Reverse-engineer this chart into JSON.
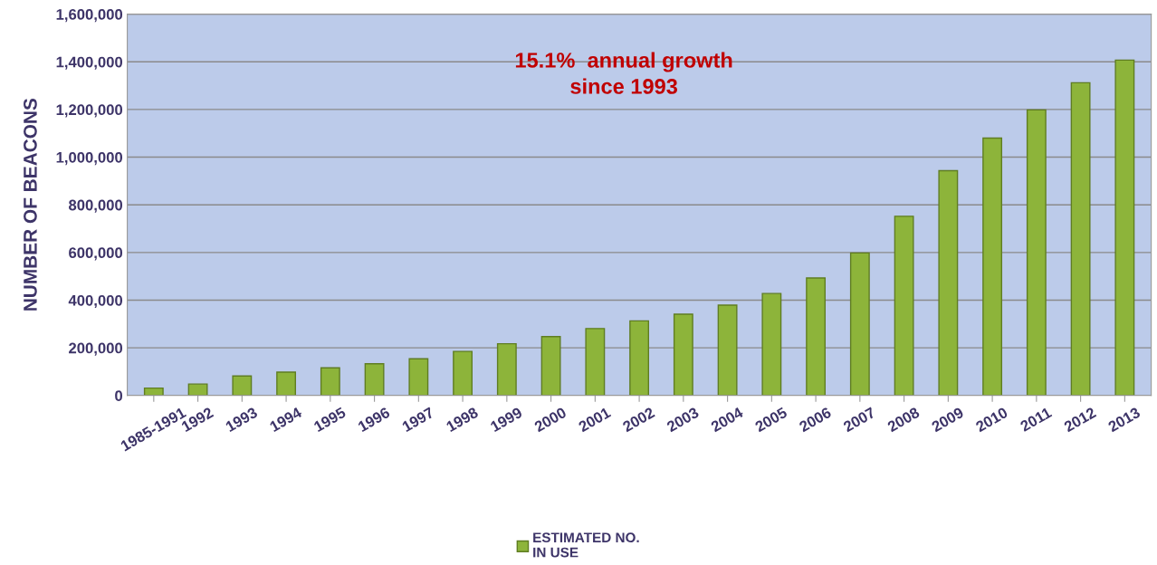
{
  "chart_data": {
    "type": "bar",
    "categories": [
      "1985-1991",
      "1992",
      "1993",
      "1994",
      "1995",
      "1996",
      "1997",
      "1998",
      "1999",
      "2000",
      "2001",
      "2002",
      "2003",
      "2004",
      "2005",
      "2006",
      "2007",
      "2008",
      "2009",
      "2010",
      "2011",
      "2012",
      "2013"
    ],
    "series": [
      {
        "name": "ESTIMATED NO.\nIN USE",
        "color": "#8db43a",
        "values": [
          31000,
          48000,
          82000,
          98000,
          116000,
          133000,
          154000,
          185000,
          217000,
          247000,
          281000,
          313000,
          341000,
          379000,
          428000,
          493000,
          598000,
          752000,
          943000,
          1080000,
          1198000,
          1312000,
          1407000
        ]
      }
    ],
    "ylabel": "NUMBER OF BEACONS",
    "ylim": [
      0,
      1600000
    ],
    "yticks": [
      {
        "value": 0,
        "label": "0"
      },
      {
        "value": 200000,
        "label": "200,000"
      },
      {
        "value": 400000,
        "label": "400,000"
      },
      {
        "value": 600000,
        "label": "600,000"
      },
      {
        "value": 800000,
        "label": "800,000"
      },
      {
        "value": 1000000,
        "label": "1,000,000"
      },
      {
        "value": 1200000,
        "label": "1,200,000"
      },
      {
        "value": 1400000,
        "label": "1,400,000"
      },
      {
        "value": 1600000,
        "label": "1,600,000"
      }
    ],
    "annotations": [
      "15.1%  annual growth\nsince 1993"
    ],
    "grid": "y",
    "legend": "bottom"
  }
}
